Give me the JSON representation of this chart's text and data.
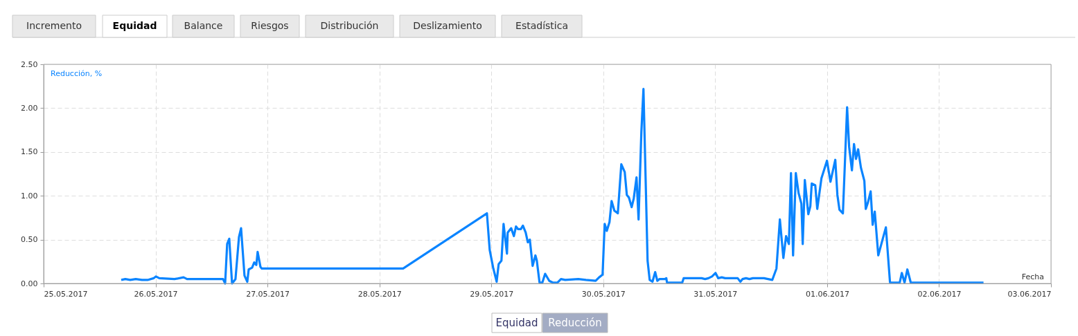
{
  "chart_data": {
    "type": "line",
    "xlabel": "Fecha",
    "ylabel": "Reducción, %",
    "annotations": [
      "Incremento",
      "Equidad",
      "Balance",
      "Riesgos",
      "Distribución",
      "Deslizamiento",
      "Estadística",
      "Equidad"
    ],
    "xlim": [
      "2017-05-25",
      "2017-06-03"
    ],
    "xticks": [
      {
        "value": "2017-05-25",
        "label": "25.05.2017"
      },
      {
        "value": "2017-05-26",
        "label": "26.05.2017"
      },
      {
        "value": "2017-05-27",
        "label": "27.05.2017"
      },
      {
        "value": "2017-05-28",
        "label": "28.05.2017"
      },
      {
        "value": "2017-05-29",
        "label": "29.05.2017"
      },
      {
        "value": "2017-05-30",
        "label": "30.05.2017"
      },
      {
        "value": "2017-05-31",
        "label": "31.05.2017"
      },
      {
        "value": "2017-06-01",
        "label": "01.06.2017"
      },
      {
        "value": "2017-06-02",
        "label": "02.06.2017"
      },
      {
        "value": "2017-06-03",
        "label": "03.06.2017"
      }
    ],
    "ylim": [
      0,
      2.5
    ],
    "yticks": [
      {
        "value": 0,
        "label": "0.00"
      },
      {
        "value": 0.5,
        "label": "0.50"
      },
      {
        "value": 1,
        "label": "1.00"
      },
      {
        "value": 1.5,
        "label": "1.50"
      },
      {
        "value": 2,
        "label": "2.00"
      },
      {
        "value": 2.5,
        "label": "2.50"
      }
    ],
    "grid": true,
    "legend": "bottom",
    "marker": "none",
    "line_style": "solid",
    "series": [
      {
        "name": "Reducción",
        "color": "#0a84ff",
        "x": [
          "2017-05-25T16:38",
          "2017-05-25T17:31",
          "2017-05-25T18:34",
          "2017-05-25T19:45",
          "2017-05-25T21:05",
          "2017-05-25T22:17",
          "2017-05-25T23:37",
          "2017-05-26T00:04",
          "2017-05-26T00:48",
          "2017-05-26T04:04",
          "2017-05-26T06:00",
          "2017-05-26T06:45",
          "2017-05-26T14:28",
          "2017-05-26T14:55",
          "2017-05-26T15:21",
          "2017-05-26T15:48",
          "2017-05-26T16:24",
          "2017-05-26T17:08",
          "2017-05-26T17:53",
          "2017-05-26T18:20",
          "2017-05-26T19:04",
          "2017-05-26T19:40",
          "2017-05-26T19:58",
          "2017-05-26T20:42",
          "2017-05-26T21:09",
          "2017-05-26T21:36",
          "2017-05-26T21:53",
          "2017-05-26T22:29",
          "2017-05-26T22:47",
          "2017-05-28T05:05",
          "2017-05-28T23:03",
          "2017-05-28T23:39",
          "2017-05-29T00:23",
          "2017-05-29T01:08",
          "2017-05-29T01:34",
          "2017-05-29T02:10",
          "2017-05-29T02:37",
          "2017-05-29T03:21",
          "2017-05-29T03:30",
          "2017-05-29T04:15",
          "2017-05-29T04:50",
          "2017-05-29T05:17",
          "2017-05-29T05:44",
          "2017-05-29T06:20",
          "2017-05-29T06:46",
          "2017-05-29T07:22",
          "2017-05-29T07:49",
          "2017-05-29T08:15",
          "2017-05-29T08:51",
          "2017-05-29T09:27",
          "2017-05-29T09:45",
          "2017-05-29T10:20",
          "2017-05-29T10:56",
          "2017-05-29T11:32",
          "2017-05-29T12:25",
          "2017-05-29T13:10",
          "2017-05-29T14:12",
          "2017-05-29T14:56",
          "2017-05-29T15:50",
          "2017-05-29T18:39",
          "2017-05-29T20:17",
          "2017-05-29T22:22",
          "2017-05-29T23:07",
          "2017-05-29T23:51",
          "2017-05-30T00:18",
          "2017-05-30T00:45",
          "2017-05-30T01:20",
          "2017-05-30T01:47",
          "2017-05-30T02:23",
          "2017-05-30T03:07",
          "2017-05-30T03:52",
          "2017-05-30T04:36",
          "2017-05-30T05:03",
          "2017-05-30T05:30",
          "2017-05-30T06:05",
          "2017-05-30T06:32",
          "2017-05-30T07:08",
          "2017-05-30T07:34",
          "2017-05-30T08:10",
          "2017-05-30T08:37",
          "2017-05-30T09:30",
          "2017-05-30T09:57",
          "2017-05-30T10:33",
          "2017-05-30T11:08",
          "2017-05-30T11:35",
          "2017-05-30T12:02",
          "2017-05-30T13:13",
          "2017-05-30T13:31",
          "2017-05-30T13:40",
          "2017-05-30T16:56",
          "2017-05-30T17:14",
          "2017-05-30T21:05",
          "2017-05-30T21:50",
          "2017-05-30T22:34",
          "2017-05-30T23:19",
          "2017-05-31T00:04",
          "2017-05-31T00:39",
          "2017-05-31T01:24",
          "2017-05-31T02:08",
          "2017-05-31T04:49",
          "2017-05-31T05:24",
          "2017-05-31T05:51",
          "2017-05-31T06:36",
          "2017-05-31T07:20",
          "2017-05-31T08:05",
          "2017-05-31T08:58",
          "2017-05-31T09:34",
          "2017-05-31T10:27",
          "2017-05-31T12:14",
          "2017-05-31T13:08",
          "2017-05-31T13:52",
          "2017-05-31T14:37",
          "2017-05-31T15:12",
          "2017-05-31T15:48",
          "2017-05-31T16:15",
          "2017-05-31T16:42",
          "2017-05-31T17:17",
          "2017-05-31T17:53",
          "2017-05-31T18:29",
          "2017-05-31T18:46",
          "2017-05-31T19:13",
          "2017-05-31T19:58",
          "2017-05-31T20:24",
          "2017-05-31T20:42",
          "2017-05-31T21:27",
          "2017-05-31T21:53",
          "2017-05-31T22:47",
          "2017-05-31T23:58",
          "2017-06-01T00:43",
          "2017-06-01T01:45",
          "2017-06-01T02:12",
          "2017-06-01T02:39",
          "2017-06-01T03:23",
          "2017-06-01T04:17",
          "2017-06-01T04:43",
          "2017-06-01T05:19",
          "2017-06-01T05:46",
          "2017-06-01T06:12",
          "2017-06-01T06:39",
          "2017-06-01T07:15",
          "2017-06-01T07:59",
          "2017-06-01T08:17",
          "2017-06-01T08:44",
          "2017-06-01T09:20",
          "2017-06-01T09:46",
          "2017-06-01T10:13",
          "2017-06-01T10:58",
          "2017-06-01T12:36",
          "2017-06-01T13:29",
          "2017-06-01T15:34",
          "2017-06-01T16:01",
          "2017-06-01T16:36",
          "2017-06-01T17:12",
          "2017-06-01T17:56",
          "2017-06-02T09:32"
        ],
        "values": [
          0.04,
          0.05,
          0.04,
          0.05,
          0.04,
          0.04,
          0.06,
          0.08,
          0.06,
          0.05,
          0.07,
          0.05,
          0.05,
          0.0,
          0.45,
          0.51,
          0.0,
          0.05,
          0.53,
          0.63,
          0.09,
          0.02,
          0.16,
          0.18,
          0.24,
          0.21,
          0.36,
          0.19,
          0.17,
          0.17,
          0.8,
          0.38,
          0.18,
          0.02,
          0.22,
          0.26,
          0.68,
          0.34,
          0.58,
          0.63,
          0.54,
          0.65,
          0.62,
          0.62,
          0.66,
          0.58,
          0.47,
          0.5,
          0.2,
          0.32,
          0.26,
          0.01,
          0.01,
          0.11,
          0.03,
          0.01,
          0.01,
          0.05,
          0.04,
          0.05,
          0.04,
          0.03,
          0.07,
          0.1,
          0.68,
          0.6,
          0.7,
          0.94,
          0.83,
          0.8,
          1.36,
          1.27,
          1.01,
          0.98,
          0.87,
          0.97,
          1.21,
          0.73,
          1.73,
          2.22,
          0.26,
          0.04,
          0.02,
          0.13,
          0.03,
          0.05,
          0.05,
          0.06,
          0.01,
          0.01,
          0.06,
          0.06,
          0.05,
          0.06,
          0.08,
          0.12,
          0.06,
          0.07,
          0.06,
          0.06,
          0.02,
          0.05,
          0.06,
          0.05,
          0.06,
          0.06,
          0.06,
          0.06,
          0.04,
          0.17,
          0.73,
          0.29,
          0.54,
          0.45,
          1.26,
          0.32,
          1.26,
          1.03,
          0.91,
          0.45,
          1.18,
          0.79,
          0.88,
          1.14,
          1.12,
          0.85,
          1.2,
          1.4,
          1.16,
          1.41,
          1.01,
          0.84,
          0.8,
          2.01,
          1.56,
          1.29,
          1.59,
          1.42,
          1.53,
          1.32,
          1.17,
          0.85,
          0.92,
          1.05,
          0.67,
          0.82,
          0.32,
          0.64,
          0.01,
          0.01,
          0.12,
          0.01,
          0.16,
          0.01,
          0.01
        ]
      }
    ]
  }
}
